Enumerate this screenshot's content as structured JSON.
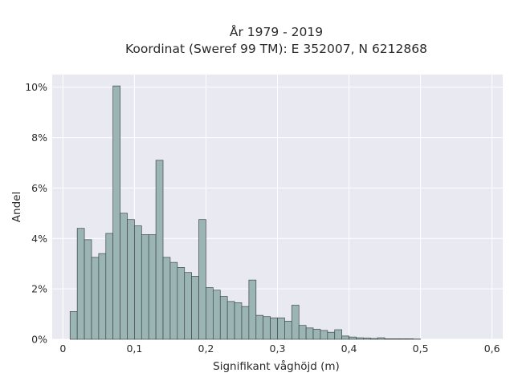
{
  "chart_data": {
    "type": "bar",
    "title_line1": "År 1979 - 2019",
    "title_line2": "Koordinat (Sweref 99 TM): E 352007, N 6212868",
    "xlabel": "Signifikant våghöjd (m)",
    "ylabel": "Andel",
    "xlim": [
      -0.015,
      0.615
    ],
    "ylim": [
      0,
      10.5
    ],
    "x_ticks": [
      {
        "value": 0,
        "label": "0"
      },
      {
        "value": 0.1,
        "label": "0,1"
      },
      {
        "value": 0.2,
        "label": "0,2"
      },
      {
        "value": 0.3,
        "label": "0,3"
      },
      {
        "value": 0.4,
        "label": "0,4"
      },
      {
        "value": 0.5,
        "label": "0,5"
      },
      {
        "value": 0.6,
        "label": "0,6"
      }
    ],
    "y_ticks": [
      {
        "value": 0,
        "label": "0%"
      },
      {
        "value": 2,
        "label": "2%"
      },
      {
        "value": 4,
        "label": "4%"
      },
      {
        "value": 6,
        "label": "6%"
      },
      {
        "value": 8,
        "label": "8%"
      },
      {
        "value": 10,
        "label": "10%"
      }
    ],
    "bin_width": 0.01,
    "bins_start": [
      0.01,
      0.02,
      0.03,
      0.04,
      0.05,
      0.06,
      0.07,
      0.08,
      0.09,
      0.1,
      0.11,
      0.12,
      0.13,
      0.14,
      0.15,
      0.16,
      0.17,
      0.18,
      0.19,
      0.2,
      0.21,
      0.22,
      0.23,
      0.24,
      0.25,
      0.26,
      0.27,
      0.28,
      0.29,
      0.3,
      0.31,
      0.32,
      0.33,
      0.34,
      0.35,
      0.36,
      0.37,
      0.38,
      0.39,
      0.4,
      0.41,
      0.42,
      0.43,
      0.44,
      0.45,
      0.46,
      0.47,
      0.48,
      0.49,
      0.5,
      0.51,
      0.52,
      0.53,
      0.54,
      0.55,
      0.56
    ],
    "values": [
      1.1,
      4.4,
      3.95,
      3.25,
      3.4,
      4.2,
      10.05,
      5.0,
      4.75,
      4.5,
      4.15,
      4.15,
      7.1,
      3.25,
      3.05,
      2.85,
      2.65,
      2.5,
      4.75,
      2.05,
      1.95,
      1.7,
      1.5,
      1.45,
      1.3,
      2.35,
      0.95,
      0.9,
      0.85,
      0.85,
      0.72,
      1.35,
      0.55,
      0.45,
      0.4,
      0.35,
      0.28,
      0.38,
      0.13,
      0.09,
      0.06,
      0.05,
      0.03,
      0.06,
      0.02,
      0.02,
      0.02,
      0.02,
      0.01,
      0.0,
      0.0,
      0.0,
      0.0,
      0.0,
      0.0,
      0.0
    ],
    "grid": true,
    "legend": "none",
    "colors": {
      "plot_bg": "#e9e9f1",
      "grid": "#ffffff",
      "bar_fill": "#9bb5b5",
      "bar_edge": "#404848",
      "text": "#2a2a2a"
    }
  }
}
